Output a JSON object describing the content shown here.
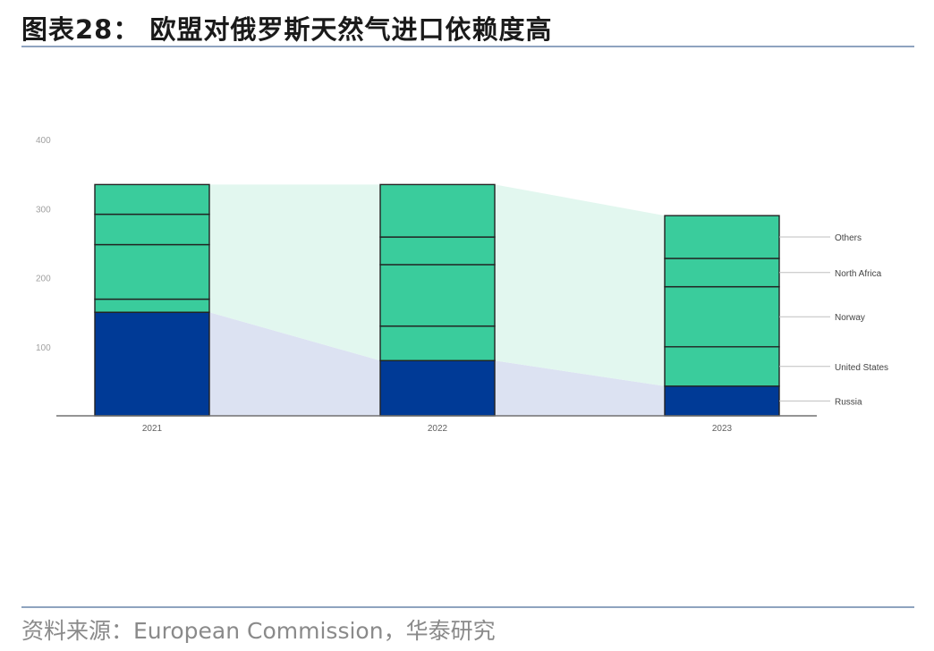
{
  "header": {
    "title": "图表28： 欧盟对俄罗斯天然气进口依赖度高"
  },
  "footer": {
    "source": "资料来源：European Commission，华泰研究"
  },
  "chart_data": {
    "type": "bar",
    "stacked": true,
    "categories": [
      "2021",
      "2022",
      "2023"
    ],
    "yticks": [
      100,
      200,
      300,
      400
    ],
    "ylim": [
      0,
      400
    ],
    "series": [
      {
        "name": "Russia",
        "values": [
          150,
          80,
          43
        ]
      },
      {
        "name": "United States",
        "values": [
          19,
          50,
          57
        ]
      },
      {
        "name": "Norway",
        "values": [
          79,
          89,
          87
        ]
      },
      {
        "name": "North Africa",
        "values": [
          44,
          40,
          41
        ]
      },
      {
        "name": "Others",
        "values": [
          43,
          76,
          62
        ]
      }
    ],
    "colors": {
      "Russia": "#003a96",
      "other": "#3acc9c",
      "band_russia": "#dce2f2",
      "band_other": "#e2f7ef",
      "axis": "#707070",
      "outline": "#222222"
    },
    "legend": {
      "placement": "right",
      "style": "leader-lines"
    },
    "grid": false
  }
}
